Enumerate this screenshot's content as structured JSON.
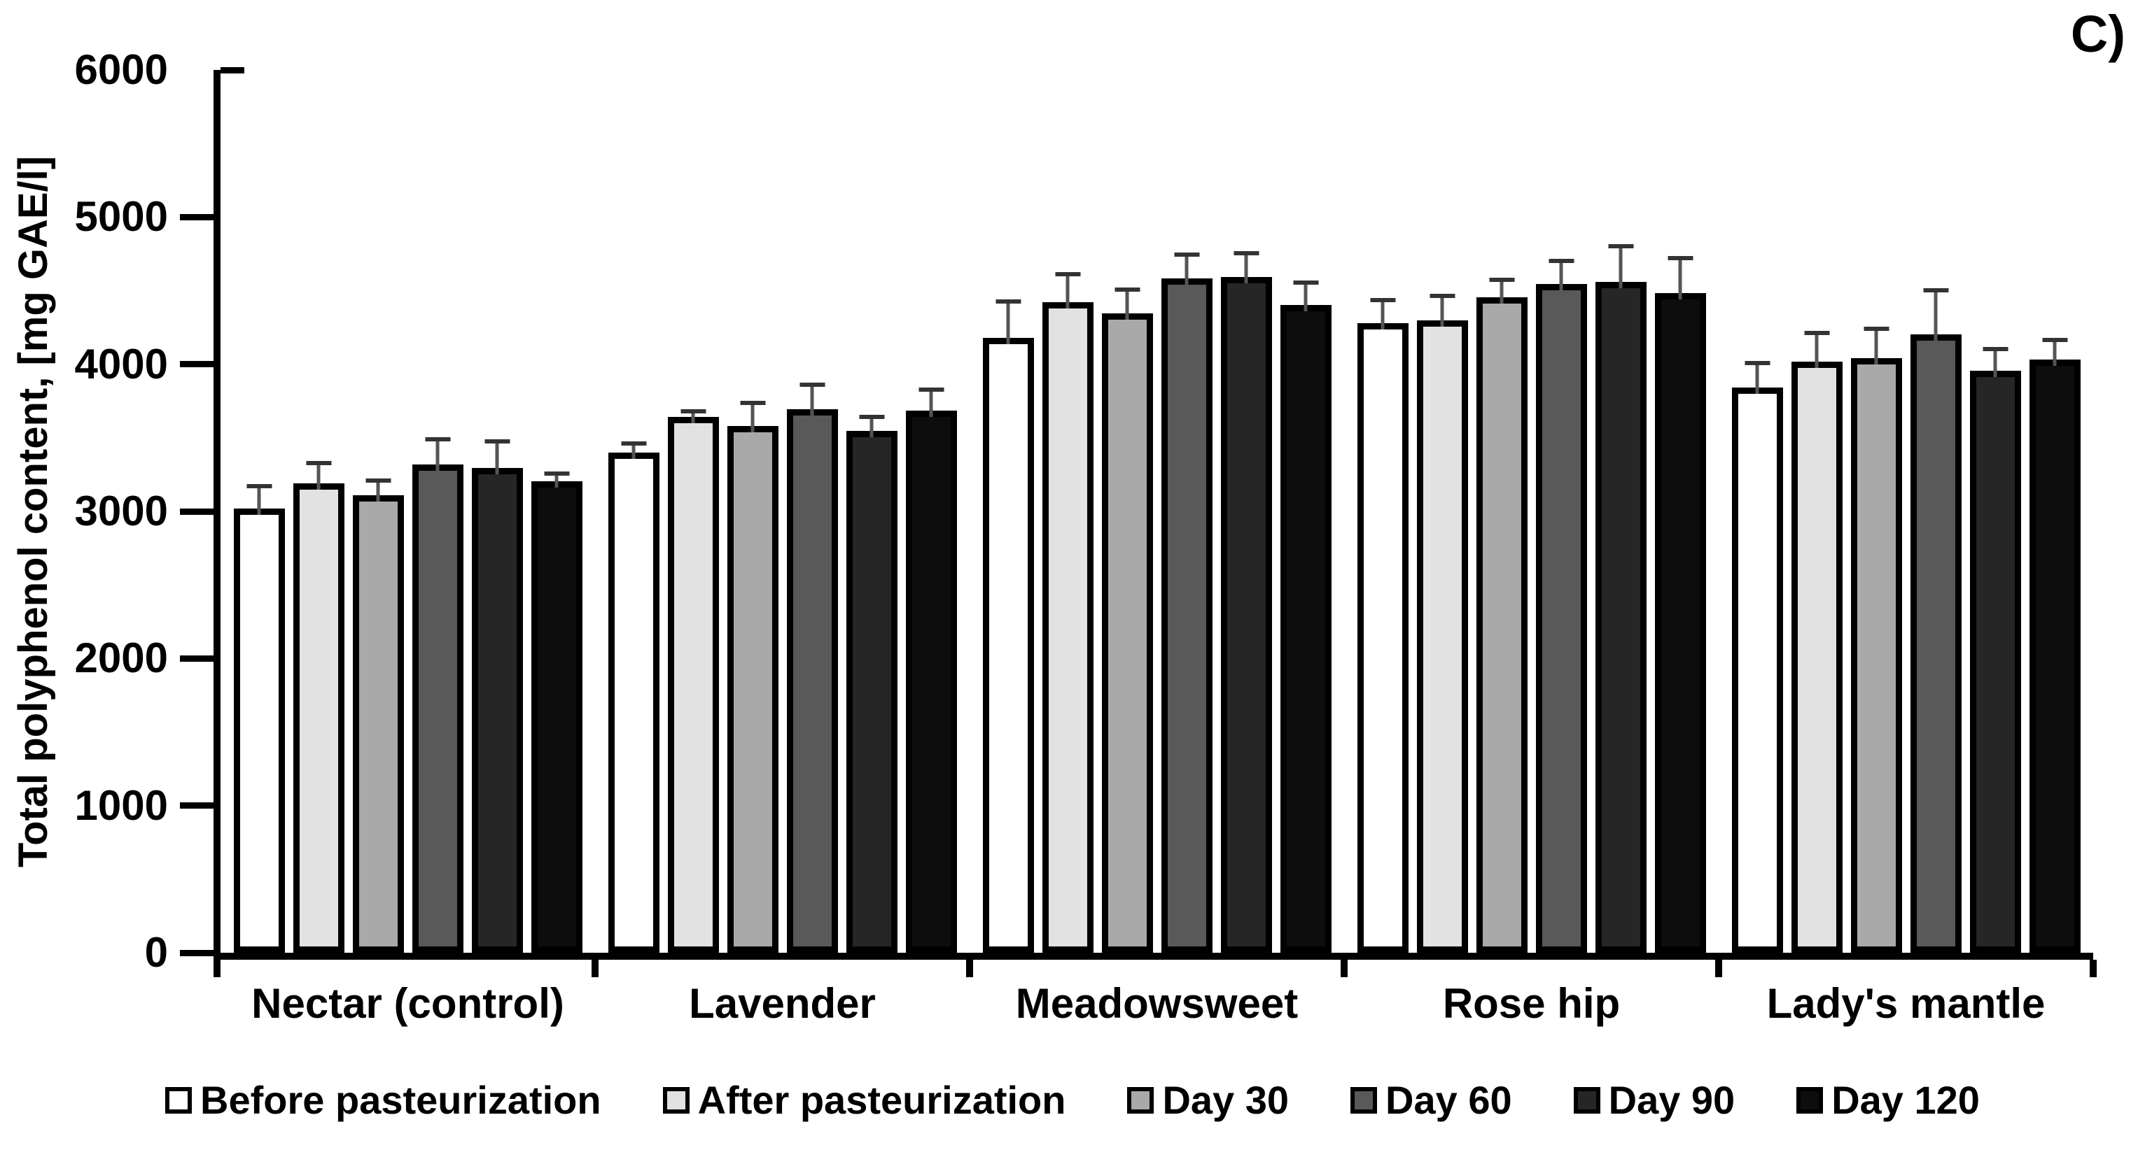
{
  "panel_label": "C)",
  "chart_data": {
    "type": "bar",
    "title": "",
    "xlabel": "",
    "ylabel": "Total polyphenol content,  [mg GAE/l]",
    "ylim": [
      0,
      6000
    ],
    "yticks": [
      0,
      1000,
      2000,
      3000,
      4000,
      5000,
      6000
    ],
    "grid": false,
    "legend_position": "bottom",
    "bar_outline_color": "#000000",
    "error_bar_color": "#555555",
    "categories": [
      "Nectar (control)",
      "Lavender",
      "Meadowsweet",
      "Rose hip",
      "Lady's mantle"
    ],
    "series": [
      {
        "name": "Before pasteurization",
        "color": "#ffffff",
        "values": [
          3020,
          3400,
          4180,
          4280,
          3840
        ],
        "errors": [
          210,
          120,
          305,
          215,
          225
        ]
      },
      {
        "name": "After pasteurization",
        "color": "#e2e2e2",
        "values": [
          3190,
          3640,
          4420,
          4300,
          4020
        ],
        "errors": [
          195,
          95,
          250,
          220,
          250
        ]
      },
      {
        "name": "Day 30",
        "color": "#a9a9a9",
        "values": [
          3110,
          3580,
          4345,
          4455,
          4040
        ],
        "errors": [
          155,
          215,
          220,
          175,
          260
        ]
      },
      {
        "name": "Day 60",
        "color": "#595959",
        "values": [
          3320,
          3695,
          4585,
          4545,
          4205
        ],
        "errors": [
          225,
          225,
          215,
          215,
          355
        ]
      },
      {
        "name": "Day 90",
        "color": "#262626",
        "values": [
          3295,
          3545,
          4595,
          4560,
          3955
        ],
        "errors": [
          240,
          155,
          215,
          300,
          205
        ]
      },
      {
        "name": "Day 120",
        "color": "#0d0d0d",
        "values": [
          3205,
          3685,
          4405,
          4485,
          4030
        ],
        "errors": [
          110,
          200,
          205,
          295,
          190
        ]
      }
    ]
  }
}
